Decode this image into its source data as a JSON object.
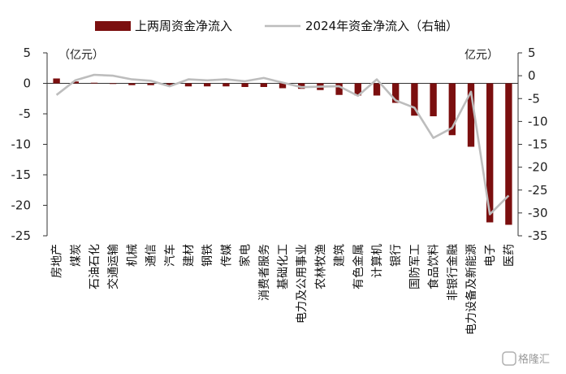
{
  "chart_data": {
    "type": "bar",
    "legend": {
      "bar_series": "上两周资金净流入",
      "line_series": "2024年资金净流入（右轴）",
      "placement": "top"
    },
    "left_unit": "（亿元）",
    "right_unit": "亿元）",
    "categories": [
      "房地产",
      "煤炭",
      "石油石化",
      "交通运输",
      "机械",
      "通信",
      "汽车",
      "建材",
      "钢铁",
      "传媒",
      "家电",
      "消费者服务",
      "基础化工",
      "电力及公用事业",
      "农林牧渔",
      "建筑",
      "有色金属",
      "计算机",
      "银行",
      "国防军工",
      "食品饮料",
      "非银行金融",
      "电力设备及新能源",
      "电子",
      "医药"
    ],
    "series": [
      {
        "name": "上两周资金净流入",
        "axis": "left",
        "kind": "bar",
        "color": "#7b0f0f",
        "values": [
          0.8,
          0.3,
          0.1,
          -0.1,
          -0.3,
          -0.3,
          -0.4,
          -0.5,
          -0.5,
          -0.5,
          -0.6,
          -0.6,
          -0.8,
          -0.9,
          -1.1,
          -1.9,
          -2.0,
          -2.0,
          -3.2,
          -5.3,
          -5.4,
          -8.5,
          -10.4,
          -22.8,
          -23.2
        ]
      },
      {
        "name": "2024年资金净流入（右轴）",
        "axis": "right",
        "kind": "line",
        "color": "#bdbdbd",
        "values": [
          -4.2,
          -1.0,
          0.2,
          0.0,
          -0.8,
          -1.1,
          -2.3,
          -0.8,
          -1.0,
          -0.8,
          -1.2,
          -0.5,
          -1.5,
          -2.5,
          -2.4,
          -2.3,
          -4.4,
          -0.8,
          -5.4,
          -7.0,
          -13.6,
          -11.4,
          -3.5,
          -30.3,
          -26.2
        ]
      }
    ],
    "left_ylim": [
      -25,
      5
    ],
    "left_ticks": [
      5,
      0,
      -5,
      -10,
      -15,
      -20,
      -25
    ],
    "right_ylim": [
      -35,
      5
    ],
    "right_ticks": [
      5,
      0,
      -5,
      -10,
      -15,
      -20,
      -25,
      -30,
      -35
    ],
    "grid": false
  },
  "watermark": "格隆汇"
}
